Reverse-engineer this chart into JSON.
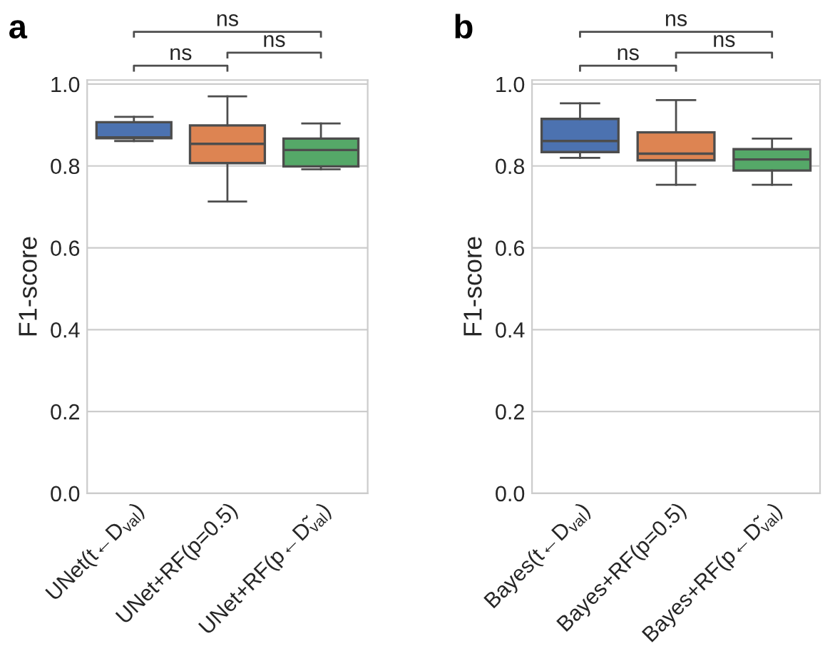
{
  "chart_data": [
    {
      "type": "box",
      "title": "a",
      "ylabel": "F1-score",
      "categories": [
        "UNet(t←D$_{val}$)",
        "UNet+RF(p=0.5)",
        "UNet+RF(p←D̃$_{val}$)"
      ],
      "colors": [
        "#4c72b0",
        "#dd8452",
        "#55a868"
      ],
      "boxes": [
        {
          "low": 0.861,
          "q1": 0.868,
          "median": 0.87,
          "q3": 0.907,
          "high": 0.92
        },
        {
          "low": 0.713,
          "q1": 0.807,
          "median": 0.854,
          "q3": 0.899,
          "high": 0.97
        },
        {
          "low": 0.792,
          "q1": 0.799,
          "median": 0.839,
          "q3": 0.867,
          "high": 0.904
        }
      ],
      "ylim": [
        0,
        1.01
      ],
      "yticks": [
        {
          "value": 0,
          "label": "0.0"
        },
        {
          "value": 0.2,
          "label": "0.2"
        },
        {
          "value": 0.4,
          "label": "0.4"
        },
        {
          "value": 0.6,
          "label": "0.6"
        },
        {
          "value": 0.8,
          "label": "0.8"
        },
        {
          "value": 1,
          "label": "1.0"
        }
      ],
      "grid": "y",
      "annotations": [
        "ns",
        "ns",
        "ns"
      ]
    },
    {
      "type": "box",
      "title": "b",
      "ylabel": "F1-score",
      "categories": [
        "Bayes(t←D$_{val}$)",
        "Bayes+RF(p=0.5)",
        "Bayes+RF(p←D̃$_{val}$)"
      ],
      "colors": [
        "#4c72b0",
        "#dd8452",
        "#55a868"
      ],
      "boxes": [
        {
          "low": 0.82,
          "q1": 0.834,
          "median": 0.861,
          "q3": 0.915,
          "high": 0.953
        },
        {
          "low": 0.754,
          "q1": 0.814,
          "median": 0.83,
          "q3": 0.882,
          "high": 0.961
        },
        {
          "low": 0.754,
          "q1": 0.789,
          "median": 0.816,
          "q3": 0.841,
          "high": 0.867
        }
      ],
      "ylim": [
        0,
        1.01
      ],
      "yticks": [
        {
          "value": 0,
          "label": "0.0"
        },
        {
          "value": 0.2,
          "label": "0.2"
        },
        {
          "value": 0.4,
          "label": "0.4"
        },
        {
          "value": 0.6,
          "label": "0.6"
        },
        {
          "value": 0.8,
          "label": "0.8"
        },
        {
          "value": 1,
          "label": "1.0"
        }
      ],
      "grid": "y",
      "annotations": [
        "ns",
        "ns",
        "ns"
      ]
    }
  ]
}
